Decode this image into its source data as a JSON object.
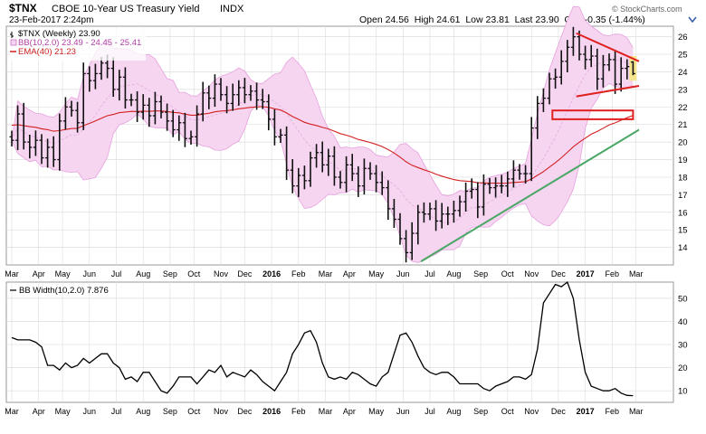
{
  "header": {
    "symbol": "$TNX",
    "name": "CBOE 10-Year US Treasury Yield",
    "exchange": "INDX",
    "date": "23-Feb-2017 2:24pm",
    "quote_line": "Open 24.56  High 24.61  Low 23.81  Last 23.90  Chg -0.35 (-1.44%)",
    "copyright": "© StockCharts.com"
  },
  "legend": {
    "price": "$TNX (Weekly) 23.90",
    "bb": "BB(10,2.0) 23.49 - 24.45 - 25.41",
    "ema": "EMA(40) 21.23",
    "bbw": "BB Width(10,2.0) 7.876"
  },
  "colors": {
    "bb_fill": "#f6d5f1",
    "bb_line": "#e7a1de",
    "ema": "#d32020",
    "price": "#111111",
    "trend_green": "#4aa766",
    "annotation_red": "#e02020",
    "grid": "#dddddd",
    "last_bar_highlight": "#f5e58c"
  },
  "icons": {
    "collapse": "chevron-down-icon"
  },
  "chart_data": [
    {
      "type": "candlestick-ohlc",
      "title": "$TNX CBOE 10-Year US Treasury Yield INDX",
      "timeframe": "weekly",
      "xlabel": "",
      "ylabel": "",
      "ylim": [
        13,
        26.6
      ],
      "y_ticks": [
        14,
        15,
        16,
        17,
        18,
        19,
        20,
        21,
        22,
        23,
        24,
        25,
        26
      ],
      "x_tick_labels": [
        "Mar",
        "Apr",
        "May",
        "Jun",
        "Jul",
        "Aug",
        "Sep",
        "Oct",
        "Nov",
        "Dec",
        "2016",
        "Feb",
        "Mar",
        "Apr",
        "May",
        "Jun",
        "Jul",
        "Aug",
        "Sep",
        "Oct",
        "Nov",
        "Dec",
        "2017",
        "Feb",
        "Mar"
      ],
      "x_tick_weeks": [
        0,
        4.5,
        8.5,
        13,
        17.5,
        22,
        26.5,
        30.5,
        35,
        39,
        43.5,
        48,
        52.5,
        56.5,
        61,
        65.5,
        70,
        74,
        78.5,
        83,
        87,
        91.5,
        96,
        100.5,
        104.5
      ],
      "close": [
        20.1,
        21.6,
        20.0,
        19.7,
        20.1,
        19.1,
        19.7,
        19.0,
        21.2,
        22.0,
        21.8,
        21.1,
        23.9,
        23.5,
        23.9,
        24.5,
        24.2,
        23.0,
        23.7,
        22.4,
        22.4,
        21.7,
        22.1,
        21.5,
        22.3,
        21.7,
        21.2,
        20.7,
        21.1,
        20.2,
        20.3,
        21.6,
        22.8,
        22.5,
        23.3,
        22.7,
        22.2,
        22.7,
        23.1,
        22.7,
        22.9,
        22.4,
        22.3,
        21.3,
        20.3,
        20.4,
        18.4,
        17.5,
        18.1,
        17.8,
        19.1,
        19.4,
        18.7,
        19.2,
        18.0,
        17.7,
        18.7,
        18.2,
        17.5,
        18.5,
        18.2,
        17.7,
        17.4,
        16.2,
        15.6,
        14.5,
        13.7,
        14.8,
        16.0,
        15.9,
        16.2,
        15.5,
        15.9,
        15.9,
        16.1,
        16.6,
        17.2,
        17.3,
        16.3,
        17.6,
        17.4,
        17.5,
        17.5,
        17.9,
        18.4,
        18.2,
        18.2,
        20.8,
        22.2,
        22.5,
        23.6,
        23.7,
        24.6,
        25.4,
        26.0,
        25.0,
        24.7,
        24.9,
        23.6,
        24.4,
        24.7,
        23.3,
        24.2,
        24.3,
        23.9
      ],
      "series": [
        {
          "name": "BB(10,2.0) Upper",
          "last": 25.41
        },
        {
          "name": "BB(10,2.0) Middle",
          "last": 24.45
        },
        {
          "name": "BB(10,2.0) Lower",
          "last": 23.49
        },
        {
          "name": "EMA(40)",
          "last": 21.23
        }
      ],
      "annotations": [
        {
          "type": "trendline",
          "color": "green",
          "from_week": 68.5,
          "from_value": 13.2,
          "to_week": 105,
          "to_value": 20.7
        },
        {
          "type": "trendline",
          "color": "red",
          "from_week": 94.5,
          "from_value": 26.2,
          "to_week": 105,
          "to_value": 24.6
        },
        {
          "type": "trendline",
          "color": "red",
          "from_week": 94.5,
          "from_value": 22.6,
          "to_week": 105,
          "to_value": 23.2
        },
        {
          "type": "zone",
          "color": "red",
          "from_week": 90.5,
          "to_week": 104,
          "from_value": 21.3,
          "to_value": 21.8
        }
      ]
    },
    {
      "type": "line",
      "title": "BB Width(10,2.0) 7.876",
      "xlabel": "",
      "ylabel": "",
      "ylim": [
        5,
        57
      ],
      "y_ticks": [
        10,
        20,
        30,
        40,
        50
      ],
      "x_tick_labels": [
        "Mar",
        "Apr",
        "May",
        "Jun",
        "Jul",
        "Aug",
        "Sep",
        "Oct",
        "Nov",
        "Dec",
        "2016",
        "Feb",
        "Mar",
        "Apr",
        "May",
        "Jun",
        "Jul",
        "Aug",
        "Sep",
        "Oct",
        "Nov",
        "Dec",
        "2017",
        "Feb",
        "Mar"
      ],
      "values": [
        33,
        32,
        32,
        32,
        31,
        29,
        21,
        21,
        19,
        22,
        20,
        21,
        24,
        22,
        24,
        26,
        26,
        22,
        20,
        15,
        16,
        14,
        18,
        18,
        14,
        10,
        9,
        12,
        16,
        16,
        16,
        13,
        16,
        19,
        18,
        21,
        16,
        18,
        17,
        16,
        19,
        17,
        14,
        12,
        10,
        14,
        18,
        26,
        30,
        35,
        36,
        31,
        22,
        16,
        15,
        16,
        15,
        18,
        17,
        15,
        13,
        12,
        16,
        18,
        26,
        34,
        35,
        31,
        25,
        20,
        18,
        17,
        18,
        18,
        16,
        13,
        13,
        13,
        13,
        11,
        10,
        12,
        13,
        14,
        16,
        16,
        15,
        17,
        28,
        48,
        52,
        56,
        55,
        57,
        50,
        32,
        18,
        12,
        11,
        10,
        10,
        11,
        9,
        8,
        7.9
      ]
    }
  ]
}
